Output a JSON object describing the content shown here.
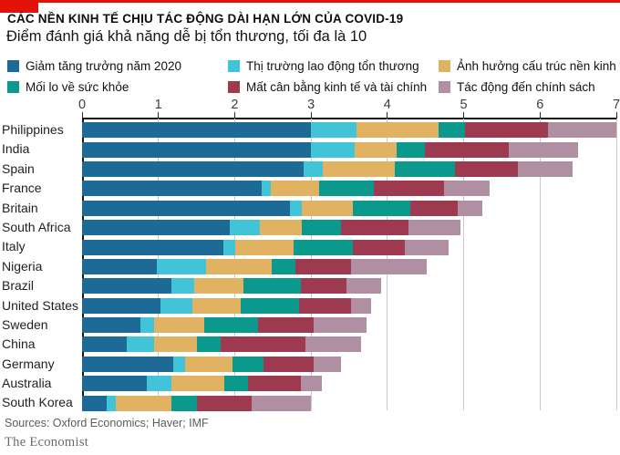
{
  "banner": {
    "color": "#e3120b"
  },
  "header": {
    "title": "CÁC NỀN KINH TẾ CHỊU TÁC ĐỘNG DÀI HẠN LỚN CỦA COVID-19",
    "subtitle": "Điểm đánh giá khả năng dễ bị tổn thương, tối đa là 10"
  },
  "chart_data": {
    "type": "bar",
    "orientation": "horizontal",
    "stacked": true,
    "title": "CÁC NỀN KINH TẾ CHỊU TÁC ĐỘNG DÀI HẠN LỚN CỦA COVID-19",
    "subtitle": "Điểm đánh giá khả năng dễ bị tổn thương, tối đa là 10",
    "xlabel": "",
    "ylabel": "",
    "xlim": [
      0,
      7
    ],
    "xticks": [
      0,
      1,
      2,
      3,
      4,
      5,
      6,
      7
    ],
    "grid": true,
    "legend_position": "top",
    "categories": [
      "Philippines",
      "India",
      "Spain",
      "France",
      "Britain",
      "South Africa",
      "Italy",
      "Nigeria",
      "Brazil",
      "United States",
      "Sweden",
      "China",
      "Germany",
      "Australia",
      "South Korea"
    ],
    "series": [
      {
        "name": "Giảm tăng trưởng năm 2020",
        "color": "#1d6a96",
        "values": [
          3.0,
          3.0,
          2.9,
          2.35,
          2.72,
          1.94,
          1.85,
          0.98,
          1.17,
          1.03,
          0.76,
          0.59,
          1.19,
          0.85,
          0.32
        ]
      },
      {
        "name": "Thị trường lao động tổn thương",
        "color": "#41c4d8",
        "values": [
          0.6,
          0.57,
          0.25,
          0.12,
          0.16,
          0.39,
          0.16,
          0.64,
          0.3,
          0.41,
          0.18,
          0.35,
          0.16,
          0.32,
          0.12
        ]
      },
      {
        "name": "Ảnh hưởng cấu trúc nền kinh tế",
        "color": "#e0b262",
        "values": [
          1.07,
          0.55,
          0.95,
          0.64,
          0.67,
          0.55,
          0.76,
          0.87,
          0.64,
          0.64,
          0.66,
          0.57,
          0.62,
          0.69,
          0.73
        ]
      },
      {
        "name": "Mối lo về sức khỏe",
        "color": "#0c998d",
        "values": [
          0.35,
          0.37,
          0.78,
          0.71,
          0.75,
          0.51,
          0.78,
          0.3,
          0.76,
          0.76,
          0.71,
          0.3,
          0.41,
          0.32,
          0.34
        ]
      },
      {
        "name": "Mất cân bằng kinh tế và tài chính",
        "color": "#9e3a50",
        "values": [
          1.09,
          1.1,
          0.83,
          0.92,
          0.62,
          0.89,
          0.68,
          0.73,
          0.59,
          0.68,
          0.73,
          1.12,
          0.66,
          0.69,
          0.71
        ]
      },
      {
        "name": "Tác động đến chính sách",
        "color": "#b18fa2",
        "values": [
          0.89,
          0.91,
          0.72,
          0.6,
          0.32,
          0.68,
          0.57,
          0.99,
          0.46,
          0.27,
          0.69,
          0.73,
          0.35,
          0.27,
          0.78
        ]
      }
    ],
    "totals": [
      7.0,
      6.5,
      6.43,
      5.34,
      5.24,
      4.96,
      4.8,
      4.51,
      3.92,
      3.79,
      3.73,
      3.66,
      3.39,
      3.14,
      3.0
    ]
  },
  "footer": {
    "sources": "Sources: Oxford Economics; Haver; IMF",
    "brand": "The Economist"
  }
}
